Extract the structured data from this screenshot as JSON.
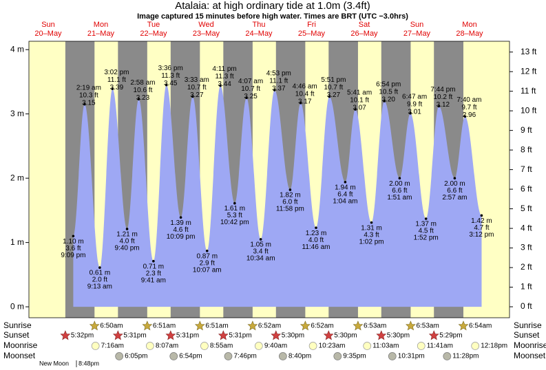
{
  "chart_data": {
    "type": "tide",
    "title": "Atalaia: at high  ordinary tide at 1.0m (3.4ft)",
    "subtitle": "Image captured 15 minutes before high water. Times are BRT (UTC −3.0hrs)",
    "ylim": [
      -0.17,
      4.13
    ],
    "yticks": [
      {
        "value": 0,
        "label": "0 m"
      },
      {
        "value": 1,
        "label": "1 m"
      },
      {
        "value": 2,
        "label": "2 m"
      },
      {
        "value": 3,
        "label": "3 m"
      },
      {
        "value": 4,
        "label": "4 m"
      }
    ],
    "y2lim": [
      -0.56,
      13.55
    ],
    "y2ticks": [
      {
        "value": 0,
        "label": "0 ft"
      },
      {
        "value": 1,
        "label": "1 ft"
      },
      {
        "value": 2,
        "label": "2 ft"
      },
      {
        "value": 3,
        "label": "3 ft"
      },
      {
        "value": 4,
        "label": "4 ft"
      },
      {
        "value": 5,
        "label": "5 ft"
      },
      {
        "value": 6,
        "label": "6 ft"
      },
      {
        "value": 7,
        "label": "7 ft"
      },
      {
        "value": 8,
        "label": "8 ft"
      },
      {
        "value": 9,
        "label": "9 ft"
      },
      {
        "value": 10,
        "label": "10 ft"
      },
      {
        "value": 11,
        "label": "11 ft"
      },
      {
        "value": 12,
        "label": "12 ft"
      },
      {
        "value": 13,
        "label": "13 ft"
      }
    ],
    "day_color": "#ffffc4",
    "night_color": "#8a8a8a",
    "tide_color": "#9ea8f4",
    "header_color": "#e00000",
    "rows": [
      "Sunrise",
      "Sunset",
      "Moonrise",
      "Moonset"
    ],
    "moon_phase": {
      "name": "New Moon",
      "time": "8:48pm"
    },
    "days": [
      {
        "name": "Sun",
        "date": "20–May",
        "sunset": "5:32pm",
        "tides": [
          {
            "time": "9:09 pm",
            "ft": "3.6 ft",
            "height": 1.1,
            "value_label": "1.10 m"
          }
        ]
      },
      {
        "name": "Mon",
        "date": "21–May",
        "sunrise": "6:50am",
        "sunset": "5:31pm",
        "moonrise": "7:16am",
        "moonset": "6:05pm",
        "tides": [
          {
            "time": "2:19 am",
            "ft": "10.3 ft",
            "height": 3.15
          },
          {
            "time": "9:13 am",
            "ft": "2.0 ft",
            "height": 0.61,
            "value_label": "0.61 m"
          },
          {
            "time": "3:02 pm",
            "ft": "11.1 ft",
            "height": 3.39
          },
          {
            "time": "9:40 pm",
            "ft": "4.0 ft",
            "height": 1.21,
            "value_label": "1.21 m"
          }
        ]
      },
      {
        "name": "Tue",
        "date": "22–May",
        "sunrise": "6:51am",
        "sunset": "5:31pm",
        "moonrise": "8:07am",
        "moonset": "6:54pm",
        "tides": [
          {
            "time": "2:58 am",
            "ft": "10.6 ft",
            "height": 3.23
          },
          {
            "time": "9:41 am",
            "ft": "2.3 ft",
            "height": 0.71,
            "value_label": "0.71 m"
          },
          {
            "time": "3:36 pm",
            "ft": "11.3 ft",
            "height": 3.45
          },
          {
            "time": "10:09 pm",
            "ft": "4.6 ft",
            "height": 1.39,
            "value_label": "1.39 m"
          }
        ]
      },
      {
        "name": "Wed",
        "date": "23–May",
        "sunrise": "6:51am",
        "sunset": "5:31pm",
        "moonrise": "8:55am",
        "moonset": "7:46pm",
        "tides": [
          {
            "time": "3:33 am",
            "ft": "10.7 ft",
            "height": 3.27
          },
          {
            "time": "10:07 am",
            "ft": "2.9 ft",
            "height": 0.87,
            "value_label": "0.87 m"
          },
          {
            "time": "4:11 pm",
            "ft": "11.3 ft",
            "height": 3.44
          },
          {
            "time": "10:42 pm",
            "ft": "5.3 ft",
            "height": 1.61,
            "value_label": "1.61 m"
          }
        ]
      },
      {
        "name": "Thu",
        "date": "24–May",
        "sunrise": "6:52am",
        "sunset": "5:30pm",
        "moonrise": "9:40am",
        "moonset": "8:40pm",
        "tides": [
          {
            "time": "4:07 am",
            "ft": "10.7 ft",
            "height": 3.25
          },
          {
            "time": "10:34 am",
            "ft": "3.4 ft",
            "height": 1.05,
            "value_label": "1.05 m"
          },
          {
            "time": "4:53 pm",
            "ft": "11.1 ft",
            "height": 3.37
          },
          {
            "time": "11:58 pm",
            "ft": "6.0 ft",
            "height": 1.82,
            "value_label": "1.82 m"
          }
        ]
      },
      {
        "name": "Fri",
        "date": "25–May",
        "sunrise": "6:52am",
        "sunset": "5:30pm",
        "moonrise": "10:23am",
        "moonset": "9:35pm",
        "tides": [
          {
            "time": "4:46 am",
            "ft": "10.4 ft",
            "height": 3.17
          },
          {
            "time": "11:46 am",
            "ft": "4.0 ft",
            "height": 1.23,
            "value_label": "1.23 m"
          },
          {
            "time": "5:51 pm",
            "ft": "10.7 ft",
            "height": 3.27
          }
        ]
      },
      {
        "name": "Sat",
        "date": "26–May",
        "sunrise": "6:53am",
        "sunset": "5:30pm",
        "moonrise": "11:03am",
        "moonset": "10:31pm",
        "tides": [
          {
            "time": "1:04 am",
            "ft": "6.4 ft",
            "height": 1.94,
            "value_label": "1.94 m"
          },
          {
            "time": "5:41 am",
            "ft": "10.1 ft",
            "height": 3.07
          },
          {
            "time": "1:02 pm",
            "ft": "4.3 ft",
            "height": 1.31,
            "value_label": "1.31 m"
          },
          {
            "time": "6:54 pm",
            "ft": "10.5 ft",
            "height": 3.2,
            "value_label": "3.20"
          }
        ]
      },
      {
        "name": "Sun",
        "date": "27–May",
        "sunrise": "6:53am",
        "sunset": "5:29pm",
        "moonrise": "11:41am",
        "moonset": "11:28pm",
        "tides": [
          {
            "time": "1:51 am",
            "ft": "6.6 ft",
            "height": 2.0,
            "value_label": "2.00 m"
          },
          {
            "time": "6:47 am",
            "ft": "9.9 ft",
            "height": 3.01
          },
          {
            "time": "1:52 pm",
            "ft": "4.5 ft",
            "height": 1.37,
            "value_label": "1.37 m"
          },
          {
            "time": "7:44 pm",
            "ft": "10.2 ft",
            "height": 3.12
          }
        ]
      },
      {
        "name": "Mon",
        "date": "28–May",
        "sunrise": "6:54am",
        "moonrise": "12:18pm",
        "tides": [
          {
            "time": "2:57 am",
            "ft": "6.6 ft",
            "height": 2.0,
            "value_label": "2.00 m"
          },
          {
            "time": "7:40 am",
            "ft": "9.7 ft",
            "height": 2.96
          },
          {
            "time": "3:12 pm",
            "ft": "4.7 ft",
            "height": 1.42,
            "value_label": "1.42 m"
          }
        ]
      }
    ]
  }
}
